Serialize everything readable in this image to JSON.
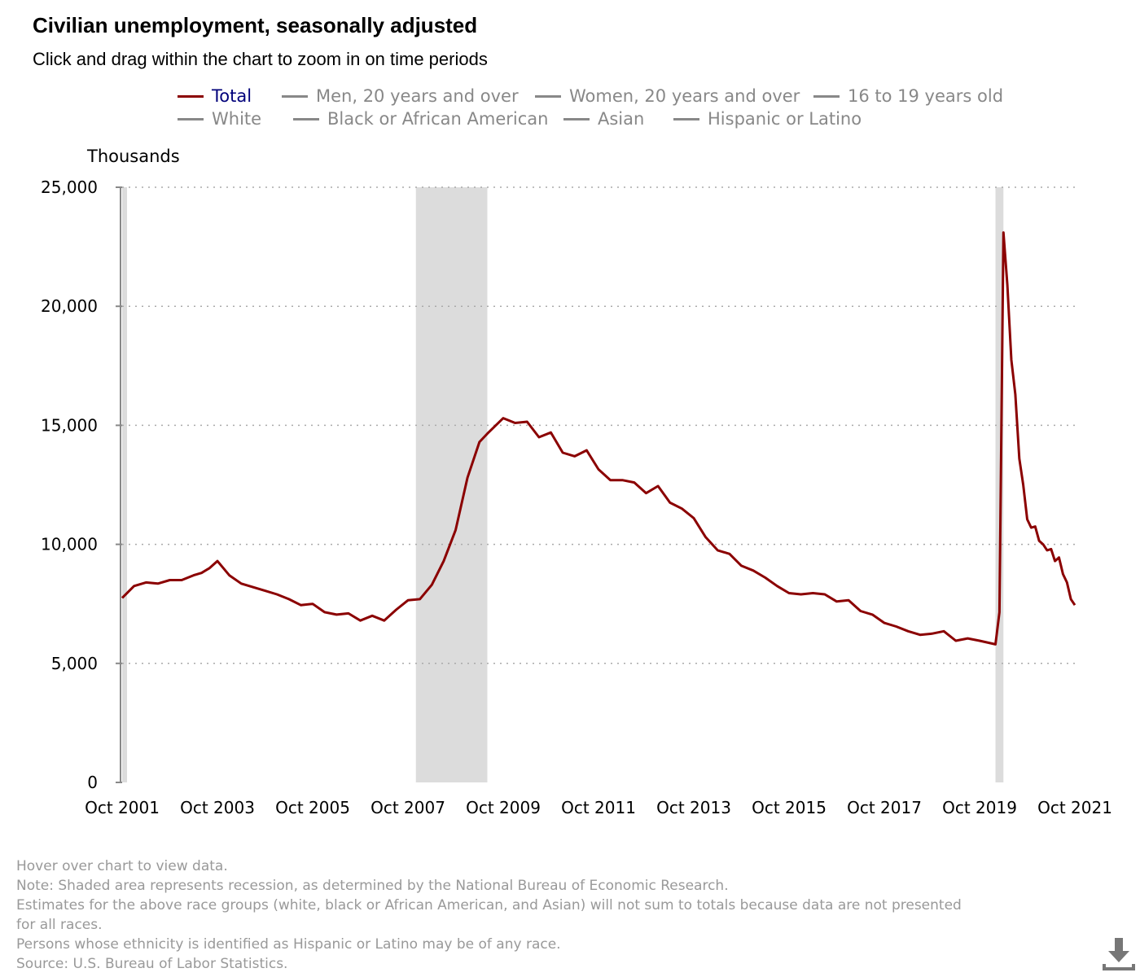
{
  "header": {
    "title": "Civilian unemployment, seasonally adjusted",
    "subtitle": "Click and drag within the chart to zoom in on time periods"
  },
  "legend": {
    "row1": [
      {
        "label": "Total",
        "active": true
      },
      {
        "label": "Men, 20 years and over",
        "active": false
      },
      {
        "label": "Women, 20 years and over",
        "active": false
      },
      {
        "label": "16 to 19 years old",
        "active": false
      }
    ],
    "row2": [
      {
        "label": "White",
        "active": false
      },
      {
        "label": "Black or African American",
        "active": false
      },
      {
        "label": "Asian",
        "active": false
      },
      {
        "label": "Hispanic or Latino",
        "active": false
      }
    ]
  },
  "colors": {
    "series_line": "#8b0000",
    "recession_shade": "#dcdcdc",
    "grid": "#aaaaaa",
    "legend_active_text": "#00007a",
    "legend_inactive": "#888888",
    "footnote_text": "#999999"
  },
  "chart_data": {
    "type": "line",
    "ylabel": "Thousands",
    "ylim": [
      0,
      25000
    ],
    "yticks": [
      0,
      5000,
      10000,
      15000,
      20000,
      25000
    ],
    "ytick_labels": [
      "0",
      "5,000",
      "10,000",
      "15,000",
      "20,000",
      "25,000"
    ],
    "xlim": [
      "2001-10",
      "2021-10"
    ],
    "xtick_labels": [
      "Oct 2001",
      "Oct 2003",
      "Oct 2005",
      "Oct 2007",
      "Oct 2009",
      "Oct 2011",
      "Oct 2013",
      "Oct 2015",
      "Oct 2017",
      "Oct 2019",
      "Oct 2021"
    ],
    "xtick_dates": [
      "2001-10",
      "2003-10",
      "2005-10",
      "2007-10",
      "2009-10",
      "2011-10",
      "2013-10",
      "2015-10",
      "2017-10",
      "2019-10",
      "2021-10"
    ],
    "grid": "horizontal dotted",
    "legend_placement": "top",
    "recessions": [
      {
        "start": "2001-10",
        "end": "2001-11"
      },
      {
        "start": "2007-12",
        "end": "2009-06"
      },
      {
        "start": "2020-02",
        "end": "2020-04"
      }
    ],
    "series": [
      {
        "name": "Total",
        "x": [
          "2001-10",
          "2002-01",
          "2002-04",
          "2002-07",
          "2002-10",
          "2003-01",
          "2003-04",
          "2003-06",
          "2003-08",
          "2003-10",
          "2004-01",
          "2004-04",
          "2004-07",
          "2004-10",
          "2005-01",
          "2005-04",
          "2005-07",
          "2005-10",
          "2006-01",
          "2006-04",
          "2006-07",
          "2006-10",
          "2007-01",
          "2007-04",
          "2007-07",
          "2007-10",
          "2008-01",
          "2008-04",
          "2008-07",
          "2008-10",
          "2009-01",
          "2009-04",
          "2009-06",
          "2009-10",
          "2010-01",
          "2010-04",
          "2010-07",
          "2010-10",
          "2011-01",
          "2011-04",
          "2011-07",
          "2011-10",
          "2012-01",
          "2012-04",
          "2012-07",
          "2012-10",
          "2013-01",
          "2013-04",
          "2013-07",
          "2013-10",
          "2014-01",
          "2014-04",
          "2014-07",
          "2014-10",
          "2015-01",
          "2015-04",
          "2015-07",
          "2015-10",
          "2016-01",
          "2016-04",
          "2016-07",
          "2016-10",
          "2017-01",
          "2017-04",
          "2017-07",
          "2017-10",
          "2018-01",
          "2018-04",
          "2018-07",
          "2018-10",
          "2019-01",
          "2019-04",
          "2019-07",
          "2019-10",
          "2020-02",
          "2020-03",
          "2020-04",
          "2020-05",
          "2020-06",
          "2020-07",
          "2020-08",
          "2020-09",
          "2020-10",
          "2020-11",
          "2020-12",
          "2021-01",
          "2021-02",
          "2021-03",
          "2021-04",
          "2021-05",
          "2021-06",
          "2021-07",
          "2021-08",
          "2021-09",
          "2021-10"
        ],
        "values": [
          7750,
          8250,
          8400,
          8350,
          8500,
          8500,
          8700,
          8800,
          9000,
          9300,
          8700,
          8350,
          8200,
          8050,
          7900,
          7700,
          7450,
          7500,
          7150,
          7050,
          7100,
          6800,
          7000,
          6800,
          7250,
          7650,
          7700,
          8300,
          9300,
          10600,
          12800,
          14300,
          14650,
          15300,
          15100,
          15150,
          14500,
          14700,
          13850,
          13700,
          13950,
          13150,
          12700,
          12700,
          12600,
          12150,
          12450,
          11750,
          11500,
          11100,
          10300,
          9750,
          9600,
          9100,
          8900,
          8600,
          8250,
          7950,
          7900,
          7950,
          7900,
          7600,
          7650,
          7200,
          7050,
          6700,
          6550,
          6350,
          6200,
          6250,
          6350,
          5950,
          6050,
          5950,
          5800,
          7150,
          23100,
          20900,
          17750,
          16300,
          13600,
          12500,
          11050,
          10700,
          10750,
          10150,
          10000,
          9750,
          9800,
          9300,
          9450,
          8750,
          8400,
          7700,
          7450
        ]
      }
    ]
  },
  "footnotes": [
    "Hover over chart to view data.",
    "Note: Shaded area represents recession, as determined by the National Bureau of Economic Research.",
    "Estimates for the above race groups (white, black or African American, and Asian) will not sum to totals because data are not presented",
    "for all races.",
    "Persons whose ethnicity is identified as Hispanic or Latino may be of any race.",
    "Source: U.S. Bureau of Labor Statistics."
  ],
  "download_icon": "download-icon"
}
